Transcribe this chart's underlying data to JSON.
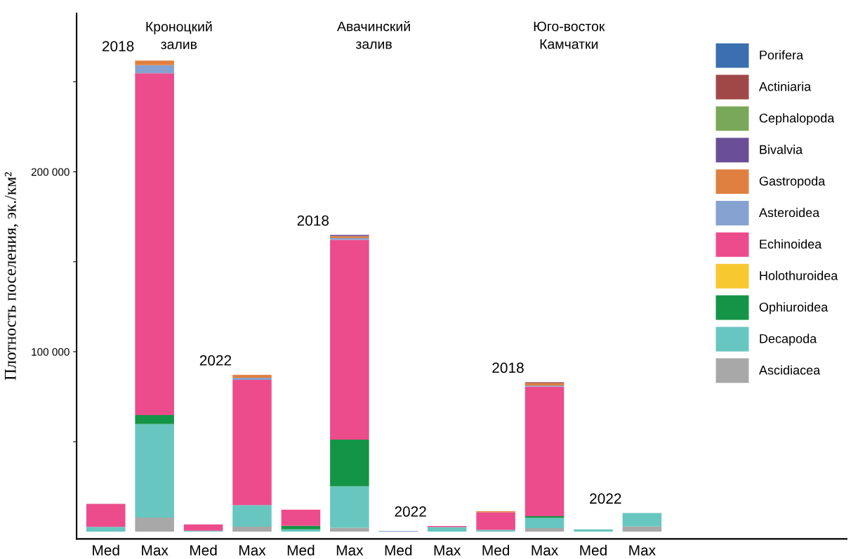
{
  "chart_data": {
    "type": "bar",
    "stacked": true,
    "ylabel": "Плотность поселения, эк./км²",
    "categories": [
      "Med",
      "Max",
      "Med",
      "Max",
      "Med",
      "Max",
      "Med",
      "Max",
      "Med",
      "Max",
      "Med",
      "Max"
    ],
    "series": [
      {
        "name": "Ascidiacea",
        "color": "#a8a8a8",
        "values": [
          0,
          7800,
          0,
          2800,
          0,
          2200,
          0,
          0,
          0,
          2000,
          0,
          2900
        ]
      },
      {
        "name": "Decapoda",
        "color": "#68c6c0",
        "values": [
          2700,
          52000,
          500,
          12000,
          1300,
          23000,
          0,
          2600,
          1000,
          5600,
          1300,
          7500
        ]
      },
      {
        "name": "Ophiuroidea",
        "color": "#149446",
        "values": [
          0,
          5000,
          0,
          0,
          2000,
          26000,
          0,
          0,
          0,
          1000,
          0,
          0
        ]
      },
      {
        "name": "Holothuroidea",
        "color": "#f8c830",
        "values": [
          0,
          0,
          0,
          0,
          0,
          0,
          0,
          0,
          0,
          0,
          0,
          0
        ]
      },
      {
        "name": "Echinoidea",
        "color": "#ec4c8c",
        "values": [
          12800,
          190000,
          3500,
          69500,
          8900,
          111000,
          0,
          600,
          9800,
          72000,
          0,
          0
        ]
      },
      {
        "name": "Asteroidea",
        "color": "#86a2d0",
        "values": [
          0,
          4500,
          0,
          1200,
          0,
          1000,
          400,
          0,
          0,
          600,
          0,
          0
        ]
      },
      {
        "name": "Gastropoda",
        "color": "#e08040",
        "values": [
          0,
          2500,
          0,
          1700,
          0,
          1000,
          0,
          0,
          600,
          1300,
          0,
          0
        ]
      },
      {
        "name": "Bivalvia",
        "color": "#6a4f96",
        "values": [
          0,
          0,
          0,
          0,
          0,
          700,
          0,
          0,
          0,
          0,
          0,
          0
        ]
      },
      {
        "name": "Cephalopoda",
        "color": "#78a858",
        "values": [
          0,
          0,
          0,
          0,
          0,
          0,
          0,
          0,
          0,
          0,
          0,
          0
        ]
      },
      {
        "name": "Actiniaria",
        "color": "#a04848",
        "values": [
          0,
          0,
          0,
          0,
          0,
          0,
          0,
          0,
          0,
          600,
          0,
          0
        ]
      },
      {
        "name": "Porifera",
        "color": "#3a6fb0",
        "values": [
          0,
          0,
          0,
          0,
          0,
          0,
          0,
          0,
          0,
          0,
          0,
          0
        ]
      }
    ],
    "ylim": [
      -4000,
      288000
    ],
    "yticks": [
      {
        "value": 50000,
        "label": null
      },
      {
        "value": 100000,
        "label": "100 000"
      },
      {
        "value": 150000,
        "label": null
      },
      {
        "value": 200000,
        "label": "200 000"
      },
      {
        "value": 250000,
        "label": null
      }
    ],
    "annotations": [
      "Кроноцкий\nзалив",
      "Авачинский\nзалив",
      "Юго-восток\nКамчатки",
      "2018",
      "2022",
      "2018",
      "2022",
      "2018",
      "2022"
    ],
    "grid": false,
    "legend": "top right"
  }
}
